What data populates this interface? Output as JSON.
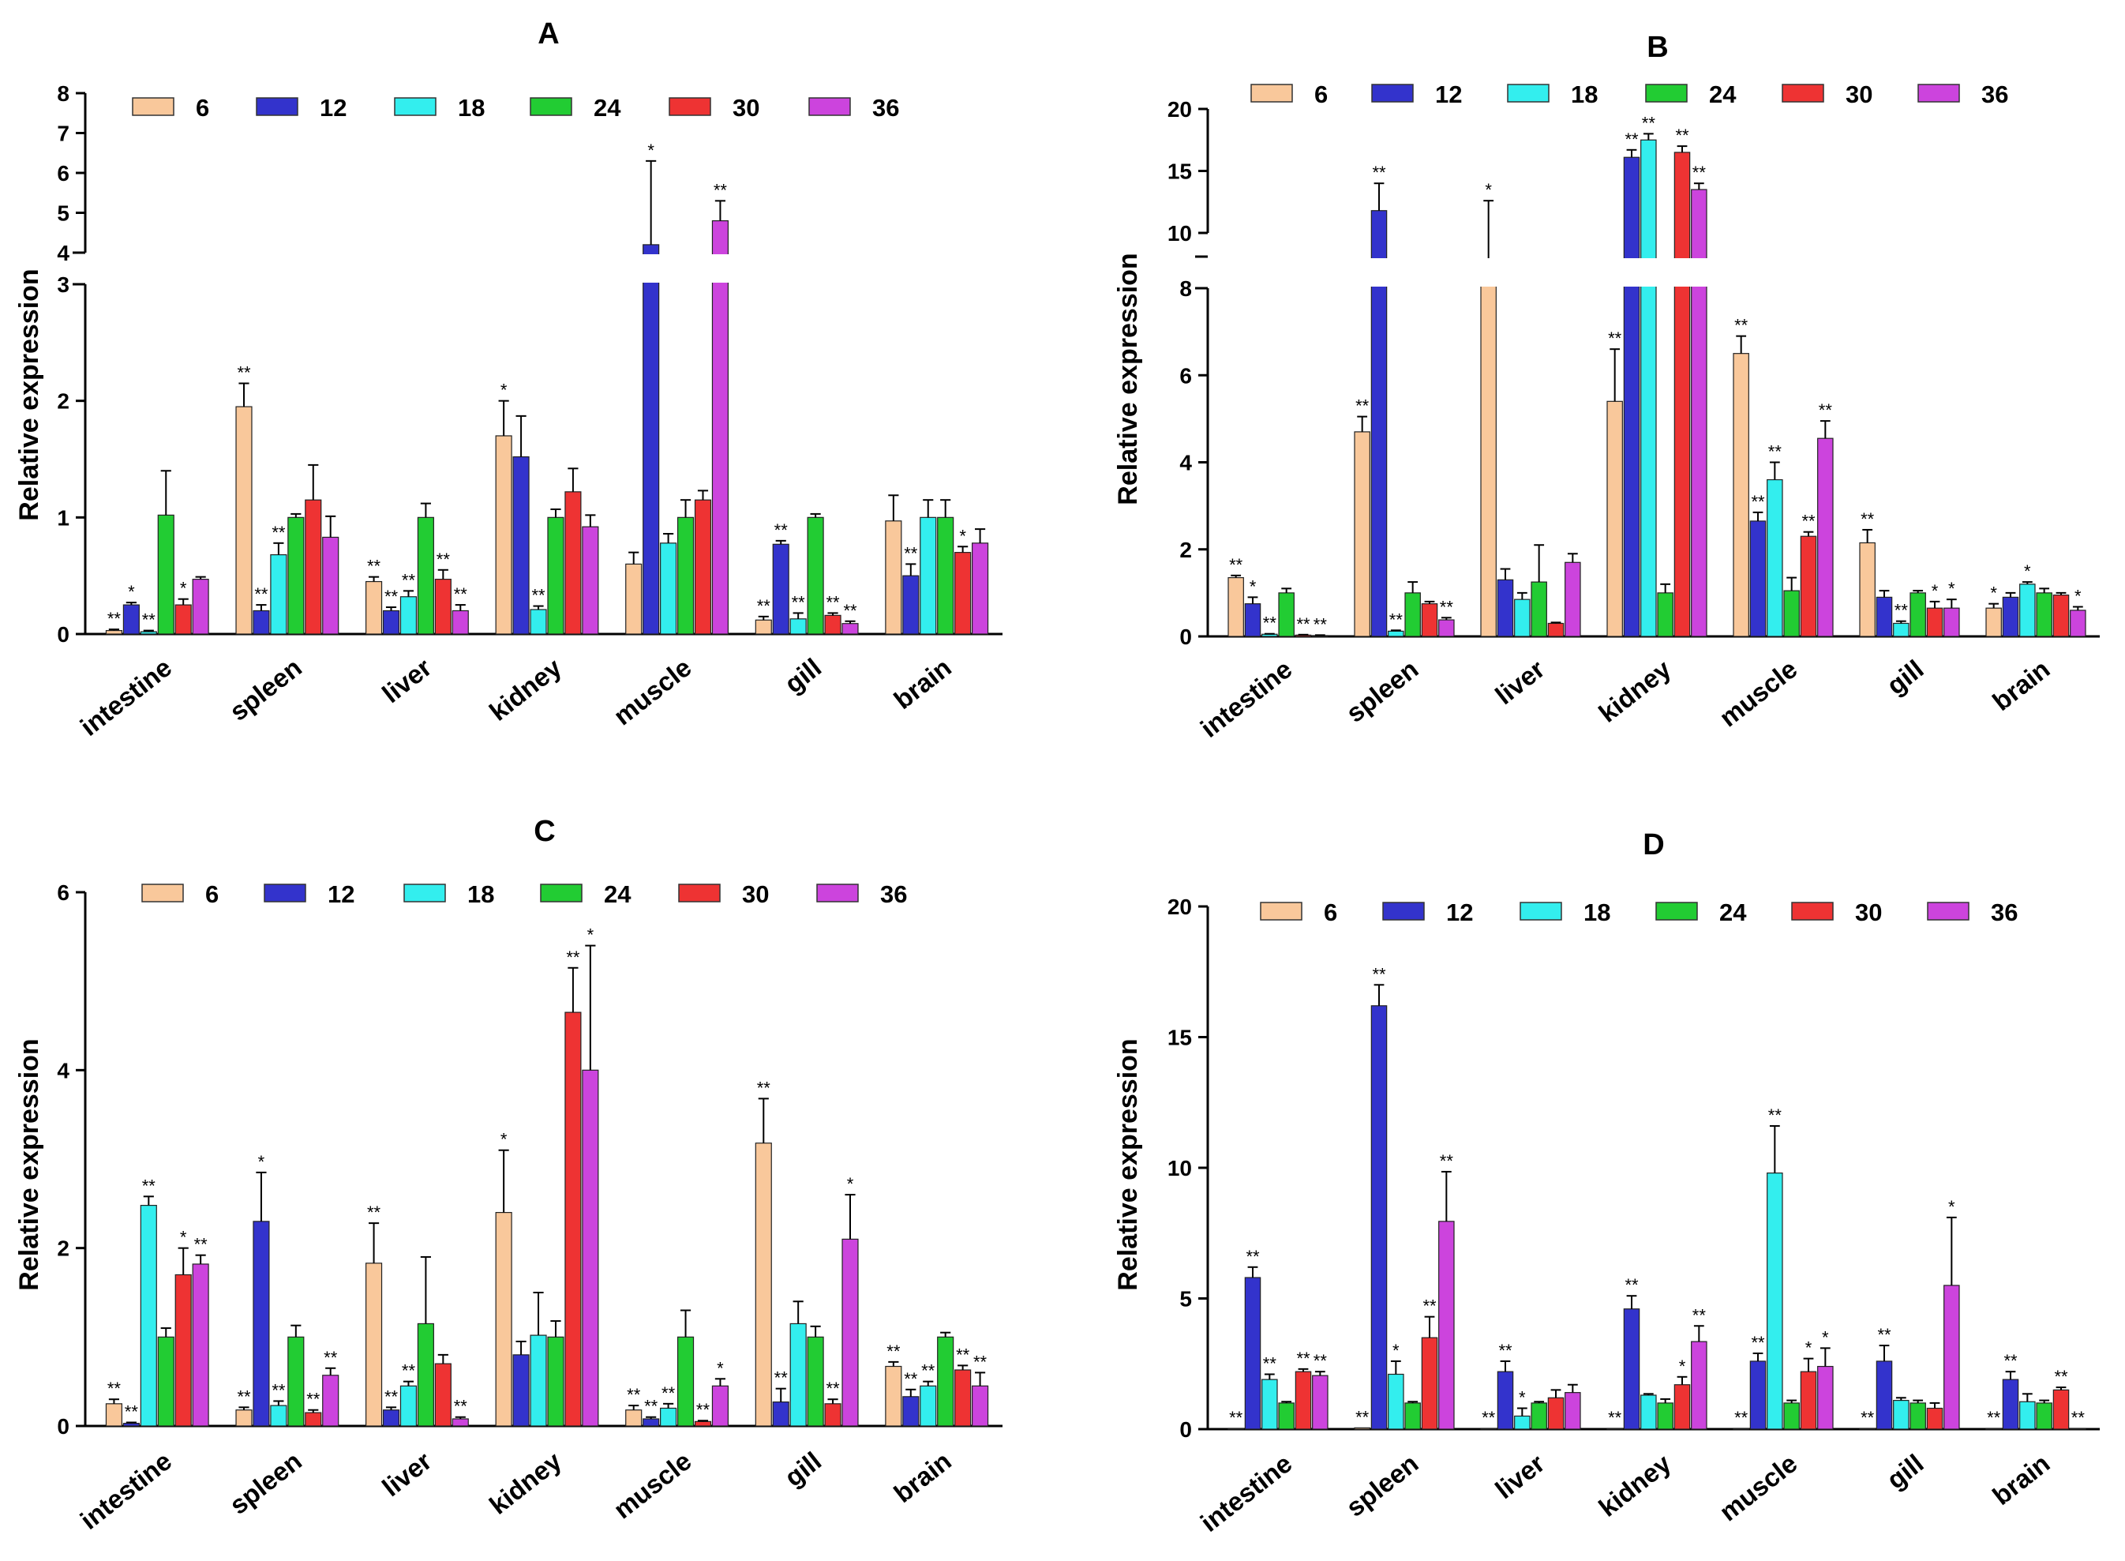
{
  "colors": {
    "6": "#f9c89b",
    "12": "#3333cc",
    "18": "#33eeee",
    "24": "#22cc33",
    "30": "#ee3333",
    "36": "#cc44dd"
  },
  "chart_data": [
    {
      "id": "A",
      "type": "bar",
      "title": "A",
      "ylabel": "Relative expression",
      "xlabel": "",
      "legend_position": "top",
      "series_names": [
        "6",
        "12",
        "18",
        "24",
        "30",
        "36"
      ],
      "categories": [
        "intestine",
        "spleen",
        "liver",
        "kidney",
        "muscle",
        "gill",
        "brain"
      ],
      "broken_axis": {
        "lower": [
          0,
          3
        ],
        "upper": [
          4,
          8
        ]
      },
      "lower_ticks": [
        "0",
        "1",
        "2",
        "3"
      ],
      "upper_ticks": [
        "4",
        "5",
        "6",
        "7",
        "8"
      ],
      "series": [
        {
          "name": "6",
          "values": [
            0.03,
            1.95,
            0.45,
            1.7,
            0.6,
            0.12,
            0.97
          ],
          "errors": [
            0.01,
            0.2,
            0.04,
            0.3,
            0.1,
            0.03,
            0.22
          ],
          "marks": [
            "**",
            "**",
            "**",
            "*",
            "",
            "**",
            ""
          ]
        },
        {
          "name": "12",
          "values": [
            0.25,
            0.2,
            0.2,
            1.52,
            4.2,
            0.77,
            0.5
          ],
          "errors": [
            0.02,
            0.05,
            0.03,
            0.35,
            2.1,
            0.03,
            0.1
          ],
          "marks": [
            "*",
            "**",
            "**",
            "",
            "*",
            "**",
            "**"
          ]
        },
        {
          "name": "18",
          "values": [
            0.02,
            0.68,
            0.32,
            0.21,
            0.78,
            0.13,
            1.0
          ],
          "errors": [
            0.01,
            0.1,
            0.05,
            0.03,
            0.08,
            0.05,
            0.15
          ],
          "marks": [
            "**",
            "**",
            "**",
            "**",
            "",
            "**",
            ""
          ]
        },
        {
          "name": "24",
          "values": [
            1.02,
            1.0,
            1.0,
            1.0,
            1.0,
            1.0,
            1.0
          ],
          "errors": [
            0.38,
            0.03,
            0.12,
            0.07,
            0.15,
            0.03,
            0.15
          ],
          "marks": [
            "",
            "",
            "",
            "",
            "",
            "",
            ""
          ]
        },
        {
          "name": "30",
          "values": [
            0.25,
            1.15,
            0.47,
            1.22,
            1.15,
            0.16,
            0.7
          ],
          "errors": [
            0.05,
            0.3,
            0.08,
            0.2,
            0.08,
            0.02,
            0.05
          ],
          "marks": [
            "*",
            "",
            "**",
            "",
            "",
            "**",
            "*"
          ]
        },
        {
          "name": "36",
          "values": [
            0.47,
            0.83,
            0.2,
            0.92,
            4.8,
            0.09,
            0.78
          ],
          "errors": [
            0.02,
            0.18,
            0.05,
            0.1,
            0.5,
            0.02,
            0.12
          ],
          "marks": [
            "",
            "",
            "**",
            "",
            "**",
            "**",
            ""
          ]
        }
      ]
    },
    {
      "id": "B",
      "type": "bar",
      "title": "B",
      "ylabel": "Relative expression",
      "xlabel": "",
      "legend_position": "top",
      "series_names": [
        "6",
        "12",
        "18",
        "24",
        "30",
        "36"
      ],
      "categories": [
        "intestine",
        "spleen",
        "liver",
        "kidney",
        "muscle",
        "gill",
        "brain"
      ],
      "broken_axis": {
        "lower": [
          0,
          8
        ],
        "upper": [
          10,
          20
        ]
      },
      "lower_ticks": [
        "0",
        "2",
        "4",
        "6",
        "8"
      ],
      "upper_ticks": [
        "10",
        "15",
        "20"
      ],
      "series": [
        {
          "name": "6",
          "values": [
            1.35,
            4.7,
            9.4,
            5.4,
            6.5,
            2.15,
            0.65
          ],
          "errors": [
            0.05,
            0.35,
            3.2,
            1.2,
            0.4,
            0.3,
            0.1
          ],
          "marks": [
            "**",
            "**",
            "*",
            "**",
            "**",
            "**",
            "*"
          ]
        },
        {
          "name": "12",
          "values": [
            0.75,
            11.8,
            1.3,
            16.1,
            2.65,
            0.9,
            0.9
          ],
          "errors": [
            0.15,
            2.2,
            0.25,
            0.6,
            0.2,
            0.15,
            0.1
          ],
          "marks": [
            "*",
            "**",
            "",
            "**",
            "**",
            "",
            ""
          ]
        },
        {
          "name": "18",
          "values": [
            0.05,
            0.12,
            0.85,
            17.5,
            3.6,
            0.3,
            1.2
          ],
          "errors": [
            0.01,
            0.02,
            0.15,
            0.5,
            0.4,
            0.05,
            0.05
          ],
          "marks": [
            "**",
            "**",
            "",
            "**",
            "**",
            "**",
            "*"
          ]
        },
        {
          "name": "24",
          "values": [
            1.0,
            1.0,
            1.25,
            1.0,
            1.05,
            1.0,
            1.0
          ],
          "errors": [
            0.1,
            0.25,
            0.85,
            0.2,
            0.3,
            0.05,
            0.1
          ],
          "marks": [
            "",
            "",
            "",
            "",
            "",
            "",
            ""
          ]
        },
        {
          "name": "30",
          "values": [
            0.03,
            0.75,
            0.3,
            16.5,
            2.3,
            0.65,
            0.95
          ],
          "errors": [
            0.01,
            0.05,
            0.02,
            0.5,
            0.1,
            0.15,
            0.05
          ],
          "marks": [
            "**",
            "",
            "",
            "**",
            "**",
            "*",
            ""
          ]
        },
        {
          "name": "36",
          "values": [
            0.02,
            0.38,
            1.7,
            13.5,
            4.55,
            0.65,
            0.6
          ],
          "errors": [
            0.01,
            0.05,
            0.2,
            0.5,
            0.4,
            0.2,
            0.08
          ],
          "marks": [
            "**",
            "**",
            "",
            "**",
            "**",
            "*",
            "*"
          ]
        }
      ]
    },
    {
      "id": "C",
      "type": "bar",
      "title": "C",
      "ylabel": "Relative expression",
      "xlabel": "",
      "legend_position": "top",
      "series_names": [
        "6",
        "12",
        "18",
        "24",
        "30",
        "36"
      ],
      "categories": [
        "intestine",
        "spleen",
        "liver",
        "kidney",
        "muscle",
        "gill",
        "brain"
      ],
      "ylim": [
        0,
        6
      ],
      "ticks": [
        "0",
        "2",
        "4",
        "6"
      ],
      "series": [
        {
          "name": "6",
          "values": [
            0.25,
            0.18,
            1.83,
            2.4,
            0.18,
            3.18,
            0.67
          ],
          "errors": [
            0.05,
            0.03,
            0.45,
            0.7,
            0.05,
            0.5,
            0.05
          ],
          "marks": [
            "**",
            "**",
            "**",
            "*",
            "**",
            "**",
            "**"
          ]
        },
        {
          "name": "12",
          "values": [
            0.03,
            2.3,
            0.18,
            0.8,
            0.08,
            0.27,
            0.33
          ],
          "errors": [
            0.01,
            0.55,
            0.03,
            0.15,
            0.02,
            0.15,
            0.08
          ],
          "marks": [
            "**",
            "*",
            "**",
            "",
            "**",
            "**",
            "**"
          ]
        },
        {
          "name": "18",
          "values": [
            2.48,
            0.23,
            0.45,
            1.02,
            0.2,
            1.15,
            0.45
          ],
          "errors": [
            0.1,
            0.05,
            0.05,
            0.48,
            0.05,
            0.25,
            0.05
          ],
          "marks": [
            "**",
            "**",
            "**",
            "",
            "**",
            "",
            "**"
          ]
        },
        {
          "name": "24",
          "values": [
            1.0,
            1.0,
            1.15,
            1.0,
            1.0,
            1.0,
            1.0
          ],
          "errors": [
            0.1,
            0.13,
            0.75,
            0.18,
            0.3,
            0.12,
            0.05
          ],
          "marks": [
            "",
            "",
            "",
            "",
            "",
            "",
            ""
          ]
        },
        {
          "name": "30",
          "values": [
            1.7,
            0.15,
            0.7,
            4.65,
            0.05,
            0.25,
            0.63
          ],
          "errors": [
            0.3,
            0.03,
            0.1,
            0.5,
            0.01,
            0.05,
            0.05
          ],
          "marks": [
            "*",
            "**",
            "",
            "**",
            "**",
            "**",
            "**"
          ]
        },
        {
          "name": "36",
          "values": [
            1.82,
            0.57,
            0.08,
            4.0,
            0.45,
            2.1,
            0.45
          ],
          "errors": [
            0.1,
            0.08,
            0.02,
            1.4,
            0.08,
            0.5,
            0.15
          ],
          "marks": [
            "**",
            "**",
            "**",
            "*",
            "*",
            "*",
            "**"
          ]
        }
      ]
    },
    {
      "id": "D",
      "type": "bar",
      "title": "D",
      "ylabel": "Relative expression",
      "xlabel": "",
      "legend_position": "top",
      "series_names": [
        "6",
        "12",
        "18",
        "24",
        "30",
        "36"
      ],
      "categories": [
        "intestine",
        "spleen",
        "liver",
        "kidney",
        "muscle",
        "gill",
        "brain"
      ],
      "ylim": [
        0,
        20
      ],
      "ticks": [
        "0",
        "5",
        "10",
        "15",
        "20"
      ],
      "series": [
        {
          "name": "6",
          "values": [
            0.03,
            0.05,
            0.03,
            0.03,
            0.03,
            0.03,
            0.03
          ],
          "errors": [
            0,
            0,
            0,
            0,
            0,
            0,
            0
          ],
          "marks": [
            "**",
            "**",
            "**",
            "**",
            "**",
            "**",
            "**"
          ]
        },
        {
          "name": "12",
          "values": [
            5.8,
            16.2,
            2.2,
            4.6,
            2.6,
            2.6,
            1.9
          ],
          "errors": [
            0.4,
            0.8,
            0.4,
            0.5,
            0.3,
            0.6,
            0.3
          ],
          "marks": [
            "**",
            "**",
            "**",
            "**",
            "**",
            "**",
            "**"
          ]
        },
        {
          "name": "18",
          "values": [
            1.9,
            2.1,
            0.5,
            1.3,
            9.8,
            1.1,
            1.05
          ],
          "errors": [
            0.2,
            0.5,
            0.3,
            0.05,
            1.8,
            0.1,
            0.3
          ],
          "marks": [
            "**",
            "*",
            "*",
            "",
            "**",
            "",
            ""
          ]
        },
        {
          "name": "24",
          "values": [
            1.0,
            1.0,
            1.0,
            1.0,
            1.0,
            1.0,
            1.0
          ],
          "errors": [
            0.05,
            0.05,
            0.05,
            0.15,
            0.1,
            0.1,
            0.1
          ],
          "marks": [
            "",
            "",
            "",
            "",
            "",
            "",
            ""
          ]
        },
        {
          "name": "30",
          "values": [
            2.2,
            3.5,
            1.2,
            1.7,
            2.2,
            0.8,
            1.5
          ],
          "errors": [
            0.1,
            0.8,
            0.3,
            0.3,
            0.5,
            0.2,
            0.1
          ],
          "marks": [
            "**",
            "**",
            "",
            "*",
            "*",
            "",
            "**"
          ]
        },
        {
          "name": "36",
          "values": [
            2.05,
            7.95,
            1.4,
            3.35,
            2.4,
            5.5,
            0.03
          ],
          "errors": [
            0.15,
            1.9,
            0.3,
            0.6,
            0.7,
            2.6,
            0
          ],
          "marks": [
            "**",
            "**",
            "",
            "**",
            "*",
            "*",
            "**"
          ]
        }
      ]
    }
  ]
}
